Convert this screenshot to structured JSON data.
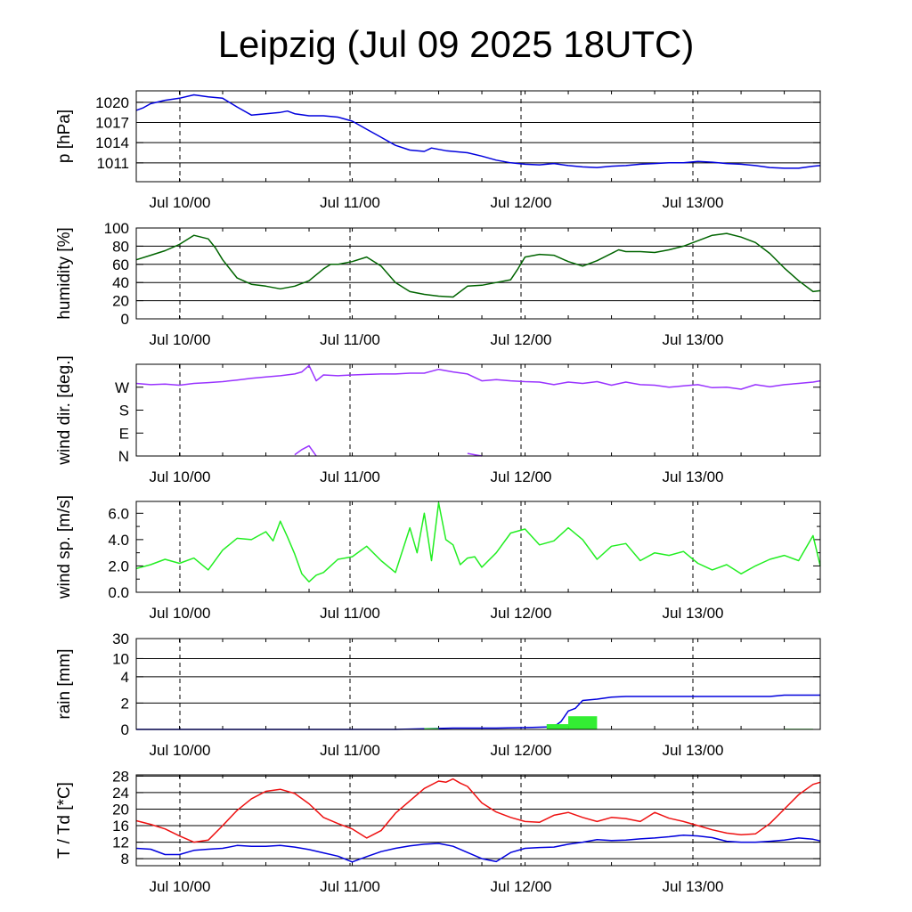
{
  "title": "Leipzig (Jul 09 2025 18UTC)",
  "x_axis": {
    "tick_labels": [
      "Jul 10/00",
      "Jul 11/00",
      "Jul 12/00",
      "Jul 13/00"
    ],
    "range_hours_from_start": [
      0,
      95
    ]
  },
  "colors": {
    "pressure": "#0000dd",
    "humidity": "#006400",
    "wind_dir": "#9933ff",
    "wind_speed": "#22ee22",
    "rain_total": "#0000dd",
    "rain_bars": "#33ee33",
    "temperature": "#ee1111",
    "dewpoint": "#0000dd"
  },
  "chart_data": [
    {
      "id": "pressure",
      "type": "line",
      "ylabel": "p [hPa]",
      "ylim": [
        1008.2,
        1021.7
      ],
      "yticks": [
        1011,
        1014,
        1017,
        1020
      ],
      "grid": true,
      "series": [
        {
          "x": [
            0,
            1,
            2,
            4,
            6,
            8,
            10,
            12,
            14,
            16,
            18,
            20,
            21,
            22,
            24,
            26,
            28,
            30,
            32,
            34,
            36,
            38,
            40,
            41,
            42,
            43,
            44,
            45,
            46,
            48,
            50,
            52,
            54,
            56,
            58,
            60,
            62,
            64,
            66,
            68,
            70,
            72,
            74,
            76,
            78,
            80,
            82,
            84,
            86,
            88,
            90,
            92,
            94,
            95
          ],
          "y": [
            1018.8,
            1019.2,
            1019.8,
            1020.3,
            1020.6,
            1021.1,
            1020.8,
            1020.6,
            1019.3,
            1018.1,
            1018.3,
            1018.5,
            1018.7,
            1018.3,
            1018.0,
            1018.0,
            1017.8,
            1017.2,
            1016.0,
            1014.8,
            1013.6,
            1012.9,
            1012.7,
            1013.2,
            1013.0,
            1012.8,
            1012.7,
            1012.6,
            1012.5,
            1012.0,
            1011.4,
            1011.0,
            1010.8,
            1010.7,
            1010.9,
            1010.6,
            1010.4,
            1010.3,
            1010.5,
            1010.6,
            1010.8,
            1010.9,
            1011.0,
            1011.0,
            1011.2,
            1011.1,
            1010.9,
            1010.8,
            1010.6,
            1010.3,
            1010.2,
            1010.2,
            1010.5,
            1010.6
          ]
        }
      ]
    },
    {
      "id": "humidity",
      "type": "line",
      "ylabel": "humidity [%]",
      "ylim": [
        0,
        100
      ],
      "yticks": [
        0,
        20,
        40,
        60,
        80,
        100
      ],
      "grid": true,
      "series": [
        {
          "x": [
            0,
            2,
            4,
            6,
            8,
            10,
            11,
            12,
            14,
            16,
            18,
            20,
            22,
            24,
            26,
            27,
            28,
            30,
            32,
            34,
            36,
            38,
            40,
            42,
            44,
            46,
            48,
            50,
            52,
            53,
            54,
            56,
            58,
            60,
            62,
            64,
            66,
            67,
            68,
            70,
            72,
            74,
            76,
            78,
            80,
            82,
            84,
            86,
            88,
            90,
            92,
            94,
            95
          ],
          "y": [
            65,
            70,
            75,
            82,
            92,
            88,
            78,
            65,
            45,
            38,
            36,
            33,
            36,
            42,
            55,
            60,
            60,
            63,
            68,
            58,
            40,
            30,
            27,
            25,
            24,
            36,
            37,
            40,
            43,
            55,
            68,
            71,
            70,
            63,
            58,
            64,
            72,
            76,
            74,
            74,
            73,
            76,
            80,
            86,
            92,
            94,
            90,
            84,
            72,
            56,
            42,
            30,
            31
          ]
        }
      ]
    },
    {
      "id": "wind_dir",
      "type": "line",
      "ylabel": "wind dir. [deg.]",
      "yticks": [
        "N",
        "E",
        "S",
        "W"
      ],
      "ytick_values": [
        0,
        90,
        180,
        270
      ],
      "ylim": [
        0,
        360
      ],
      "grid": false,
      "series": [
        {
          "x": [
            0,
            2,
            4,
            6,
            8,
            10,
            12,
            14,
            16,
            18,
            20,
            22,
            23,
            24,
            25,
            26,
            28,
            30,
            32,
            34,
            36,
            38,
            40,
            42,
            44,
            46,
            48,
            50,
            52,
            54,
            56,
            58,
            60,
            62,
            64,
            66,
            68,
            70,
            72,
            74,
            76,
            78,
            80,
            82,
            84,
            86,
            88,
            90,
            92,
            94,
            95
          ],
          "y": [
            285,
            280,
            282,
            278,
            285,
            288,
            292,
            298,
            305,
            310,
            315,
            322,
            330,
            355,
            295,
            318,
            315,
            318,
            320,
            322,
            322,
            325,
            325,
            340,
            330,
            322,
            295,
            300,
            295,
            292,
            290,
            280,
            290,
            285,
            292,
            278,
            290,
            280,
            278,
            270,
            275,
            280,
            268,
            270,
            262,
            280,
            272,
            280,
            285,
            290,
            295
          ]
        },
        {
          "x": [
            22,
            23,
            24,
            25
          ],
          "y": [
            5,
            25,
            40,
            0
          ]
        },
        {
          "x": [
            46,
            47,
            48
          ],
          "y": [
            10,
            5,
            0
          ]
        }
      ]
    },
    {
      "id": "wind_speed",
      "type": "line",
      "ylabel": "wind sp. [m/s]",
      "ylim": [
        0,
        6.9
      ],
      "yticks": [
        "0.0",
        "2.0",
        "4.0",
        "6.0"
      ],
      "ytick_values": [
        0,
        2,
        4,
        6
      ],
      "grid": false,
      "series": [
        {
          "x": [
            0,
            2,
            4,
            6,
            8,
            10,
            12,
            14,
            16,
            18,
            19,
            20,
            21,
            22,
            23,
            24,
            25,
            26,
            28,
            30,
            32,
            34,
            36,
            38,
            39,
            40,
            41,
            42,
            43,
            44,
            45,
            46,
            47,
            48,
            50,
            52,
            54,
            56,
            58,
            60,
            62,
            64,
            66,
            68,
            70,
            72,
            74,
            76,
            78,
            80,
            82,
            84,
            86,
            88,
            90,
            92,
            94,
            95
          ],
          "y": [
            1.8,
            2.1,
            2.5,
            2.2,
            2.6,
            1.7,
            3.2,
            4.1,
            4.0,
            4.6,
            3.9,
            5.4,
            4.2,
            2.9,
            1.4,
            0.8,
            1.3,
            1.5,
            2.5,
            2.7,
            3.5,
            2.4,
            1.5,
            4.9,
            3.0,
            6.0,
            2.4,
            6.8,
            4.0,
            3.6,
            2.1,
            2.6,
            2.7,
            1.9,
            3.0,
            4.5,
            4.8,
            3.6,
            3.9,
            4.9,
            4.0,
            2.5,
            3.5,
            3.7,
            2.4,
            3.0,
            2.8,
            3.1,
            2.2,
            1.7,
            2.1,
            1.4,
            2.0,
            2.5,
            2.8,
            2.4,
            4.3,
            2.0
          ]
        }
      ]
    },
    {
      "id": "rain",
      "type": "bar",
      "ylabel": "rain [mm]",
      "yticks": [
        "0",
        "2",
        "4",
        "10",
        "30"
      ],
      "ytick_values": [
        0,
        2,
        4,
        10,
        30
      ],
      "grid": true,
      "series": [
        {
          "type": "line",
          "x": [
            0,
            30,
            36,
            40,
            44,
            50,
            55,
            58,
            59,
            60,
            61,
            62,
            64,
            66,
            68,
            72,
            80,
            88,
            90,
            95
          ],
          "y": [
            0,
            0,
            0,
            0.05,
            0.1,
            0.1,
            0.15,
            0.2,
            0.6,
            1.4,
            1.6,
            2.2,
            2.3,
            2.45,
            2.5,
            2.5,
            2.5,
            2.5,
            2.6,
            2.6
          ]
        },
        {
          "type": "bar",
          "bars": [
            {
              "x": [
                40,
                42
              ],
              "y": 0.1
            },
            {
              "x": [
                57,
                60
              ],
              "y": 0.4
            },
            {
              "x": [
                60,
                64
              ],
              "y": 1.0
            },
            {
              "x": [
                90,
                94
              ],
              "y": 0.05
            }
          ]
        }
      ]
    },
    {
      "id": "temperature",
      "type": "line",
      "ylabel": "T / Td [*C]",
      "ylim": [
        6.3,
        28.3
      ],
      "yticks": [
        8,
        12,
        16,
        20,
        24,
        28
      ],
      "grid": true,
      "series": [
        {
          "x": [
            0,
            2,
            4,
            6,
            8,
            10,
            12,
            14,
            16,
            18,
            20,
            22,
            24,
            26,
            28,
            30,
            32,
            34,
            36,
            38,
            40,
            42,
            43,
            44,
            45,
            46,
            48,
            50,
            52,
            54,
            56,
            58,
            60,
            62,
            64,
            66,
            68,
            70,
            72,
            74,
            76,
            78,
            80,
            82,
            84,
            86,
            88,
            90,
            92,
            94,
            95
          ],
          "y": [
            17.2,
            16.3,
            15.2,
            13.5,
            12.0,
            12.5,
            16.0,
            19.7,
            22.5,
            24.3,
            24.8,
            23.8,
            21.3,
            18.0,
            16.5,
            15.2,
            13.0,
            14.8,
            19.0,
            22.0,
            25.0,
            26.8,
            26.5,
            27.3,
            26.3,
            25.5,
            21.5,
            19.3,
            18.0,
            17.0,
            16.8,
            18.5,
            19.2,
            18.0,
            17.0,
            18.0,
            17.7,
            17.0,
            19.2,
            17.8,
            17.0,
            16.0,
            15.0,
            14.2,
            13.8,
            14.0,
            16.5,
            20.0,
            23.5,
            26.0,
            26.5
          ]
        },
        {
          "x": [
            0,
            2,
            4,
            6,
            8,
            10,
            12,
            14,
            16,
            18,
            20,
            22,
            24,
            26,
            28,
            30,
            32,
            34,
            36,
            38,
            40,
            42,
            44,
            46,
            48,
            50,
            52,
            54,
            56,
            58,
            60,
            62,
            64,
            66,
            68,
            70,
            72,
            74,
            76,
            78,
            80,
            82,
            84,
            86,
            88,
            90,
            92,
            94,
            95
          ],
          "y": [
            10.5,
            10.3,
            9.0,
            9.0,
            10.0,
            10.3,
            10.5,
            11.2,
            11.0,
            11.0,
            11.2,
            10.8,
            10.2,
            9.4,
            8.6,
            7.2,
            8.5,
            9.7,
            10.5,
            11.1,
            11.5,
            11.7,
            11.0,
            9.5,
            8.0,
            7.3,
            9.5,
            10.5,
            10.7,
            10.8,
            11.5,
            12.0,
            12.6,
            12.4,
            12.5,
            12.8,
            13.0,
            13.3,
            13.7,
            13.5,
            13.1,
            12.2,
            12.0,
            12.0,
            12.2,
            12.5,
            13.0,
            12.7,
            12.3
          ]
        }
      ]
    }
  ]
}
